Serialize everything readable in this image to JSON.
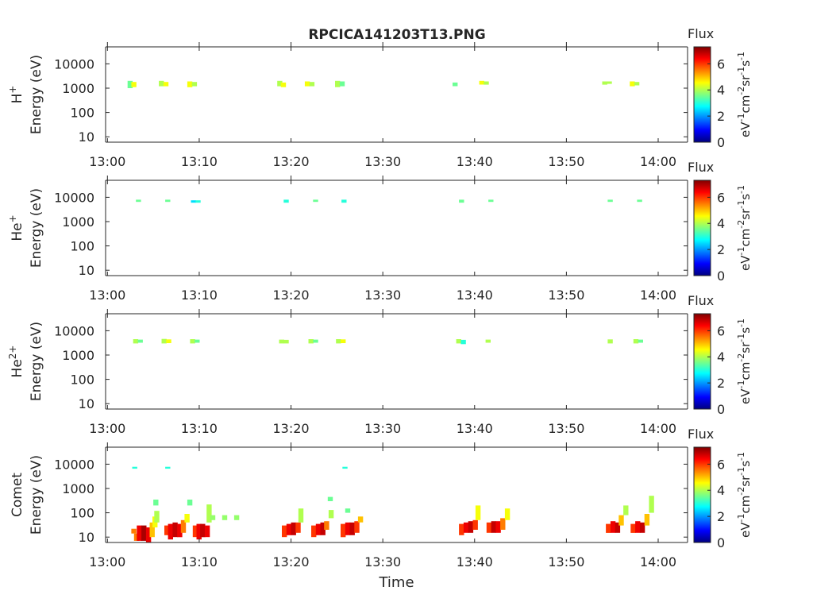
{
  "title": "RPCICA141203T13.PNG",
  "colorbar": {
    "label": "Flux",
    "unit_parts": [
      "eV",
      "-1",
      "cm",
      "-2",
      "sr",
      "-1",
      "s",
      "-1"
    ],
    "ticks": [
      0,
      2,
      4,
      6
    ],
    "range": [
      0,
      7.3
    ]
  },
  "chart_data": [
    {
      "type": "heatmap",
      "ylabel_main": "H",
      "ylabel_sup": "+",
      "ylabel_energy": "Energy (eV)",
      "xlabel": "",
      "yscale": "log",
      "ylim": [
        6,
        50000
      ],
      "yticks": [
        10,
        100,
        1000,
        10000
      ],
      "ytick_labels": [
        "10",
        "100",
        "1000",
        "10000"
      ],
      "xticks": [
        "13:00",
        "13:10",
        "13:20",
        "13:30",
        "13:40",
        "13:50",
        "14:00"
      ],
      "xlim_minutes": [
        -0.2,
        63.2
      ],
      "cells": [
        [
          2.2,
          1000,
          2000,
          3.5
        ],
        [
          2.6,
          1100,
          1800,
          4.5
        ],
        [
          5.6,
          1200,
          2000,
          4.0
        ],
        [
          6.1,
          1200,
          1800,
          4.5
        ],
        [
          8.7,
          1100,
          1900,
          4.5
        ],
        [
          9.2,
          1200,
          1800,
          4.0
        ],
        [
          18.5,
          1200,
          2000,
          4.0
        ],
        [
          18.9,
          1100,
          1700,
          4.5
        ],
        [
          21.5,
          1200,
          1900,
          4.5
        ],
        [
          22.0,
          1200,
          1800,
          4.0
        ],
        [
          24.8,
          1100,
          2000,
          4.0
        ],
        [
          25.3,
          1200,
          1900,
          3.5
        ],
        [
          37.6,
          1200,
          1700,
          3.5
        ],
        [
          40.5,
          1400,
          2000,
          4.5
        ],
        [
          41.0,
          1400,
          1900,
          4.0
        ],
        [
          53.9,
          1400,
          1900,
          4.0
        ],
        [
          54.4,
          1500,
          1900,
          4.0
        ],
        [
          56.9,
          1200,
          1900,
          4.5
        ],
        [
          57.4,
          1300,
          1800,
          4.0
        ]
      ]
    },
    {
      "type": "heatmap",
      "ylabel_main": "He",
      "ylabel_sup": "+",
      "ylabel_energy": "Energy (eV)",
      "xlabel": "",
      "yscale": "log",
      "ylim": [
        6,
        50000
      ],
      "yticks": [
        10,
        100,
        1000,
        10000
      ],
      "ytick_labels": [
        "10",
        "100",
        "1000",
        "10000"
      ],
      "xticks": [
        "13:00",
        "13:10",
        "13:20",
        "13:30",
        "13:40",
        "13:50",
        "14:00"
      ],
      "xlim_minutes": [
        -0.2,
        63.2
      ],
      "cells": [
        [
          3.1,
          6500,
          8000,
          3.5
        ],
        [
          6.3,
          6500,
          8000,
          3.5
        ],
        [
          9.1,
          6000,
          7500,
          2.5
        ],
        [
          9.6,
          6000,
          7500,
          3.0
        ],
        [
          19.2,
          6000,
          8000,
          3.0
        ],
        [
          22.4,
          6500,
          8000,
          3.5
        ],
        [
          25.5,
          6000,
          8000,
          3.0
        ],
        [
          38.3,
          6000,
          8000,
          3.5
        ],
        [
          41.5,
          6500,
          8000,
          3.5
        ],
        [
          54.5,
          6500,
          8000,
          3.5
        ],
        [
          57.7,
          6500,
          8000,
          3.5
        ]
      ]
    },
    {
      "type": "heatmap",
      "ylabel_main": "He",
      "ylabel_sup": "2+",
      "ylabel_energy": "Energy (eV)",
      "xlabel": "",
      "yscale": "log",
      "ylim": [
        6,
        50000
      ],
      "yticks": [
        10,
        100,
        1000,
        10000
      ],
      "ytick_labels": [
        "10",
        "100",
        "1000",
        "10000"
      ],
      "xticks": [
        "13:00",
        "13:10",
        "13:20",
        "13:30",
        "13:40",
        "13:50",
        "14:00"
      ],
      "xlim_minutes": [
        -0.2,
        63.2
      ],
      "cells": [
        [
          2.8,
          3000,
          4500,
          4.0
        ],
        [
          3.3,
          3200,
          4300,
          3.5
        ],
        [
          5.9,
          3000,
          4600,
          4.0
        ],
        [
          6.4,
          3100,
          4400,
          4.5
        ],
        [
          9.0,
          3000,
          4500,
          4.0
        ],
        [
          9.5,
          3200,
          4300,
          3.5
        ],
        [
          18.7,
          3000,
          4300,
          4.0
        ],
        [
          19.2,
          3000,
          4200,
          4.0
        ],
        [
          21.9,
          3000,
          4500,
          4.0
        ],
        [
          22.4,
          3200,
          4300,
          3.5
        ],
        [
          24.9,
          3000,
          4500,
          4.0
        ],
        [
          25.4,
          3100,
          4400,
          4.5
        ],
        [
          38.0,
          3000,
          4500,
          4.0
        ],
        [
          38.5,
          2800,
          4200,
          3.0
        ],
        [
          41.2,
          3200,
          4300,
          4.0
        ],
        [
          54.5,
          3000,
          4400,
          4.0
        ],
        [
          57.3,
          3000,
          4500,
          4.0
        ],
        [
          57.8,
          3200,
          4300,
          3.5
        ]
      ]
    },
    {
      "type": "heatmap",
      "ylabel_main": "Comet",
      "ylabel_sup": "",
      "ylabel_energy": "Energy (eV)",
      "xlabel": "Time",
      "yscale": "log",
      "ylim": [
        6,
        50000
      ],
      "yticks": [
        10,
        100,
        1000,
        10000
      ],
      "ytick_labels": [
        "10",
        "100",
        "1000",
        "10000"
      ],
      "xticks": [
        "13:00",
        "13:10",
        "13:20",
        "13:30",
        "13:40",
        "13:50",
        "14:00"
      ],
      "xlim_minutes": [
        -0.2,
        63.2
      ],
      "cells": [
        [
          2.7,
          6500,
          7800,
          3.0
        ],
        [
          6.3,
          6500,
          7800,
          3.0
        ],
        [
          25.6,
          6500,
          7800,
          3.0
        ],
        [
          2.6,
          14,
          22,
          5.5
        ],
        [
          2.9,
          7,
          14,
          5.5
        ],
        [
          3.2,
          7,
          30,
          6.5
        ],
        [
          3.7,
          7,
          30,
          7.0
        ],
        [
          4.2,
          6,
          25,
          6.5
        ],
        [
          4.6,
          10,
          40,
          5.0
        ],
        [
          4.9,
          25,
          70,
          4.5
        ],
        [
          5.1,
          40,
          120,
          4.0
        ],
        [
          5.0,
          200,
          350,
          3.5
        ],
        [
          6.2,
          12,
          30,
          6.0
        ],
        [
          6.6,
          8,
          35,
          6.5
        ],
        [
          7.1,
          10,
          40,
          6.8
        ],
        [
          7.6,
          10,
          35,
          6.5
        ],
        [
          8.0,
          15,
          50,
          5.5
        ],
        [
          8.4,
          40,
          90,
          4.5
        ],
        [
          8.7,
          200,
          350,
          3.5
        ],
        [
          9.3,
          10,
          30,
          6.0
        ],
        [
          9.7,
          8,
          35,
          6.5
        ],
        [
          10.1,
          10,
          35,
          6.8
        ],
        [
          10.6,
          10,
          30,
          6.5
        ],
        [
          10.8,
          40,
          220,
          4.0
        ],
        [
          11.2,
          50,
          80,
          3.8
        ],
        [
          12.5,
          50,
          80,
          3.8
        ],
        [
          13.8,
          50,
          80,
          3.8
        ],
        [
          19.0,
          10,
          30,
          6.0
        ],
        [
          19.5,
          12,
          35,
          6.5
        ],
        [
          20.0,
          12,
          40,
          6.8
        ],
        [
          20.5,
          15,
          40,
          6.0
        ],
        [
          20.8,
          40,
          150,
          4.0
        ],
        [
          22.2,
          10,
          30,
          6.0
        ],
        [
          22.7,
          12,
          35,
          6.5
        ],
        [
          23.2,
          12,
          40,
          6.8
        ],
        [
          23.6,
          20,
          45,
          5.5
        ],
        [
          24.1,
          60,
          130,
          4.0
        ],
        [
          24.0,
          300,
          450,
          3.5
        ],
        [
          25.4,
          10,
          35,
          6.0
        ],
        [
          25.9,
          12,
          40,
          6.5
        ],
        [
          26.4,
          12,
          40,
          6.8
        ],
        [
          26.9,
          15,
          45,
          6.0
        ],
        [
          27.3,
          40,
          70,
          5.0
        ],
        [
          25.9,
          100,
          150,
          3.5
        ],
        [
          38.3,
          12,
          35,
          6.0
        ],
        [
          38.8,
          15,
          40,
          6.5
        ],
        [
          39.3,
          15,
          45,
          6.8
        ],
        [
          39.8,
          20,
          50,
          6.0
        ],
        [
          40.1,
          50,
          200,
          4.5
        ],
        [
          41.3,
          15,
          40,
          6.0
        ],
        [
          41.8,
          15,
          45,
          6.8
        ],
        [
          42.3,
          15,
          45,
          6.5
        ],
        [
          42.8,
          20,
          60,
          5.5
        ],
        [
          43.3,
          50,
          150,
          4.5
        ],
        [
          54.3,
          15,
          35,
          6.0
        ],
        [
          54.8,
          15,
          45,
          6.5
        ],
        [
          55.3,
          15,
          40,
          6.8
        ],
        [
          55.7,
          30,
          80,
          5.0
        ],
        [
          56.2,
          80,
          200,
          4.0
        ],
        [
          57.0,
          15,
          35,
          6.0
        ],
        [
          57.5,
          15,
          45,
          6.5
        ],
        [
          58.0,
          15,
          40,
          6.8
        ],
        [
          58.5,
          30,
          90,
          5.0
        ],
        [
          59.0,
          100,
          500,
          4.0
        ]
      ]
    }
  ]
}
